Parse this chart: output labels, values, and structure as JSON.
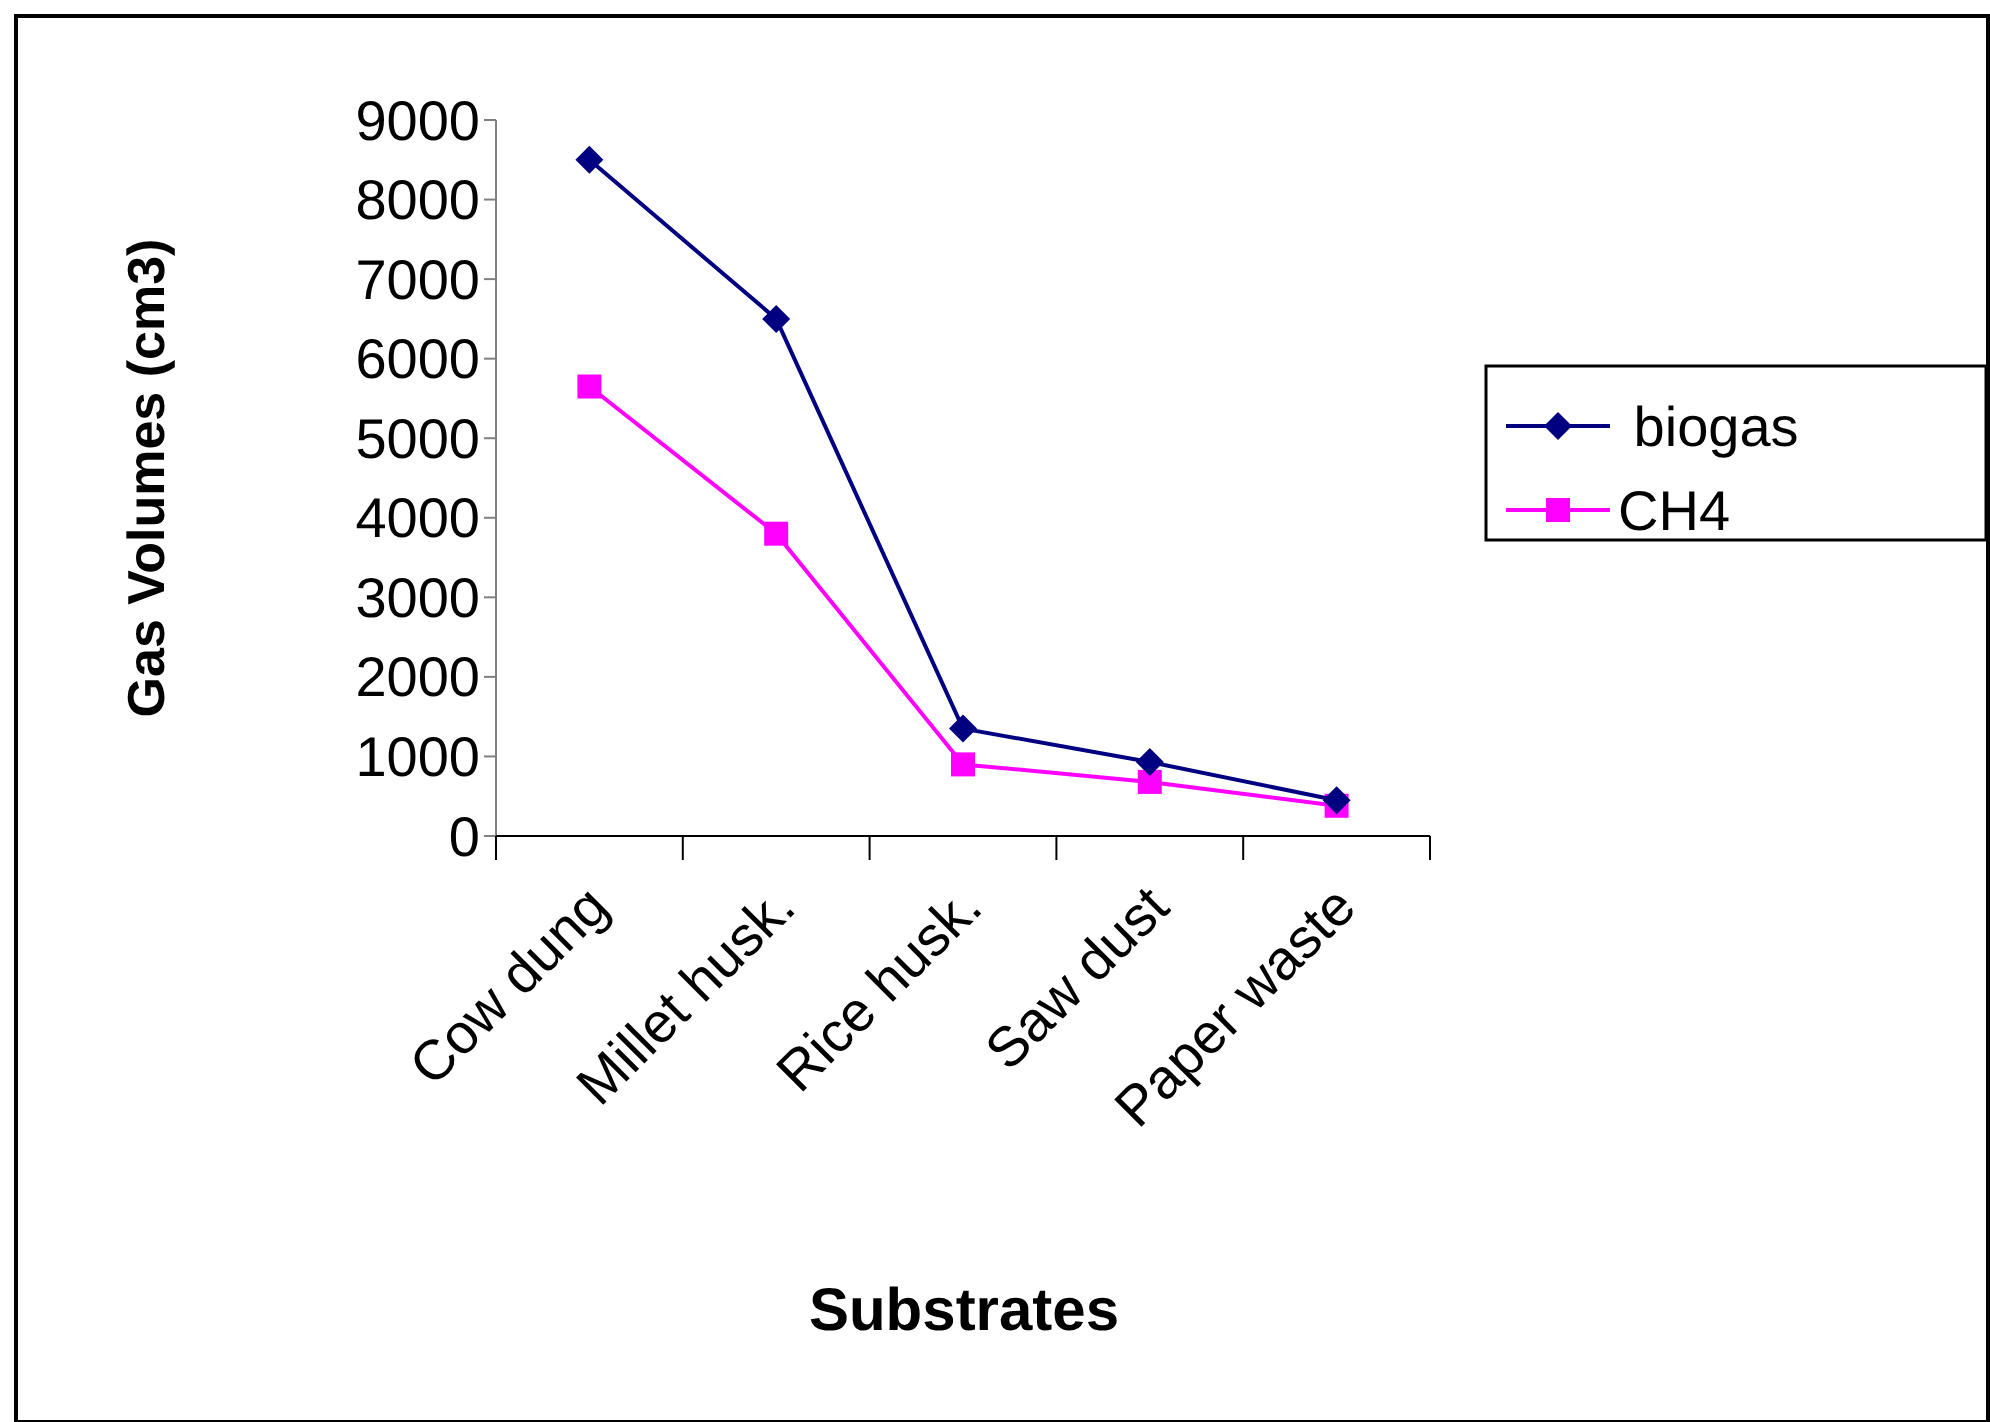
{
  "chart_data": {
    "type": "line",
    "xlabel": "Substrates",
    "ylabel": "Gas Volumes (cm3)",
    "categories": [
      "Cow dung",
      "Millet husk.",
      "Rice husk.",
      "Saw dust",
      "Paper waste"
    ],
    "series": [
      {
        "name": " biogas",
        "color": "#000080",
        "marker": "diamond",
        "values": [
          8500,
          6500,
          1350,
          930,
          450
        ]
      },
      {
        "name": "CH4",
        "color": "#ff00ff",
        "marker": "square",
        "values": [
          5650,
          3800,
          900,
          680,
          380
        ]
      }
    ],
    "ylim": [
      0,
      9000
    ],
    "yticks": [
      0,
      1000,
      2000,
      3000,
      4000,
      5000,
      6000,
      7000,
      8000,
      9000
    ],
    "grid": false,
    "legend": "right"
  }
}
